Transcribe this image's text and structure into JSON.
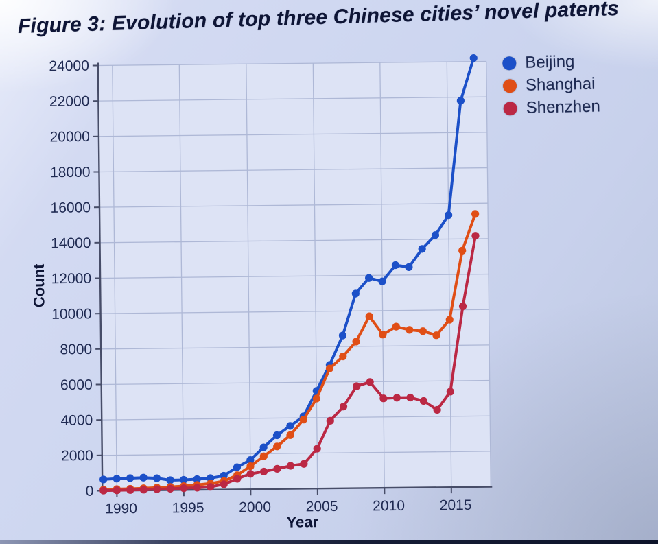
{
  "chart_data": {
    "type": "line",
    "title": "Figure 3: Evolution of top three Chinese cities’ novel patents",
    "xlabel": "Year",
    "ylabel": "Count",
    "x": [
      1989,
      1990,
      1991,
      1992,
      1993,
      1994,
      1995,
      1996,
      1997,
      1998,
      1999,
      2000,
      2001,
      2002,
      2003,
      2004,
      2005,
      2006,
      2007,
      2008,
      2009,
      2010,
      2011,
      2012,
      2013,
      2014,
      2015,
      2016,
      2017
    ],
    "xticks": [
      1990,
      1995,
      2000,
      2005,
      2010,
      2015
    ],
    "yticks": [
      0,
      2000,
      4000,
      6000,
      8000,
      10000,
      12000,
      14000,
      16000,
      18000,
      20000,
      22000,
      24000
    ],
    "ylim": [
      0,
      24200
    ],
    "xlim": [
      1988.9,
      2018.0
    ],
    "grid": true,
    "legend_position": "top-right",
    "series": [
      {
        "name": "Beijing",
        "color": "#1c50c8",
        "values": [
          640,
          680,
          700,
          720,
          680,
          560,
          570,
          600,
          650,
          780,
          1250,
          1650,
          2360,
          3030,
          3550,
          4080,
          5510,
          6970,
          8620,
          10980,
          11850,
          11650,
          12560,
          12440,
          13460,
          14230,
          15350,
          21800,
          24200
        ]
      },
      {
        "name": "Shanghai",
        "color": "#e04e16",
        "values": [
          70,
          90,
          100,
          120,
          150,
          180,
          220,
          280,
          350,
          480,
          800,
          1300,
          1850,
          2400,
          3030,
          3900,
          5080,
          6770,
          7440,
          8270,
          9690,
          8650,
          9090,
          8900,
          8820,
          8580,
          9450,
          13340,
          15400
        ]
      },
      {
        "name": "Shenzhen",
        "color": "#bb2844",
        "values": [
          15,
          20,
          30,
          40,
          60,
          80,
          100,
          120,
          160,
          300,
          600,
          870,
          990,
          1140,
          1300,
          1400,
          2250,
          3820,
          4610,
          5750,
          5980,
          5050,
          5080,
          5080,
          4880,
          4370,
          5390,
          10200,
          14170
        ]
      }
    ]
  },
  "colors": {
    "background": "#cdd6f0",
    "plot_background": "#dde3f5",
    "grid": "#aeb8d6",
    "axis": "#474d68",
    "tick_text": "#1f2a52",
    "title_text": "#0e1536"
  }
}
